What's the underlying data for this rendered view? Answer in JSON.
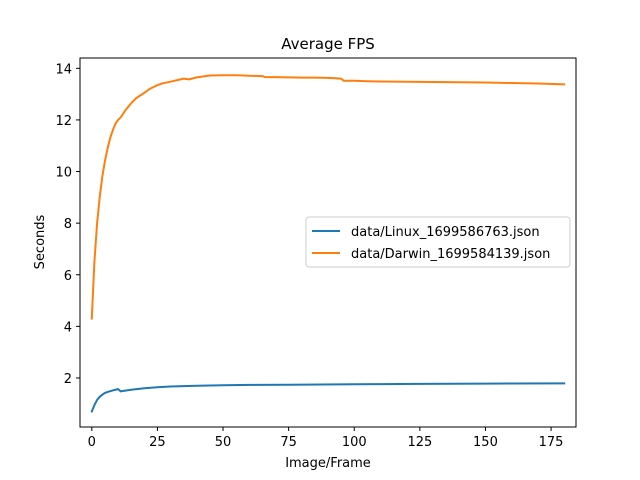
{
  "chart_data": {
    "type": "line",
    "title": "Average FPS",
    "xlabel": "Image/Frame",
    "ylabel": "Seconds",
    "xlim": [
      -4.5,
      184.5
    ],
    "ylim": [
      0.1,
      14.4
    ],
    "xticks": [
      0,
      25,
      50,
      75,
      100,
      125,
      150,
      175
    ],
    "yticks": [
      2,
      4,
      6,
      8,
      10,
      12,
      14
    ],
    "grid": false,
    "legend_position": "center-right",
    "series": [
      {
        "name": "data/Linux_1699586763.json",
        "color": "#1f77b4",
        "points": [
          [
            0,
            0.7
          ],
          [
            1,
            0.95
          ],
          [
            2,
            1.15
          ],
          [
            3,
            1.27
          ],
          [
            4,
            1.35
          ],
          [
            5,
            1.42
          ],
          [
            6,
            1.46
          ],
          [
            8,
            1.52
          ],
          [
            10,
            1.57
          ],
          [
            11,
            1.48
          ],
          [
            12,
            1.5
          ],
          [
            15,
            1.54
          ],
          [
            20,
            1.6
          ],
          [
            25,
            1.64
          ],
          [
            30,
            1.67
          ],
          [
            40,
            1.7
          ],
          [
            50,
            1.72
          ],
          [
            60,
            1.73
          ],
          [
            75,
            1.74
          ],
          [
            100,
            1.76
          ],
          [
            125,
            1.77
          ],
          [
            150,
            1.78
          ],
          [
            180,
            1.79
          ]
        ]
      },
      {
        "name": "data/Darwin_1699584139.json",
        "color": "#ff7f0e",
        "points": [
          [
            0,
            4.3
          ],
          [
            1,
            6.5
          ],
          [
            2,
            8.0
          ],
          [
            3,
            9.0
          ],
          [
            4,
            9.8
          ],
          [
            5,
            10.4
          ],
          [
            6,
            10.9
          ],
          [
            7,
            11.3
          ],
          [
            8,
            11.6
          ],
          [
            9,
            11.85
          ],
          [
            10,
            12.0
          ],
          [
            11,
            12.1
          ],
          [
            13,
            12.4
          ],
          [
            15,
            12.65
          ],
          [
            17,
            12.85
          ],
          [
            20,
            13.05
          ],
          [
            22,
            13.2
          ],
          [
            25,
            13.35
          ],
          [
            27,
            13.42
          ],
          [
            30,
            13.48
          ],
          [
            33,
            13.55
          ],
          [
            35,
            13.6
          ],
          [
            37,
            13.57
          ],
          [
            40,
            13.65
          ],
          [
            45,
            13.72
          ],
          [
            50,
            13.73
          ],
          [
            55,
            13.73
          ],
          [
            58,
            13.72
          ],
          [
            60,
            13.71
          ],
          [
            65,
            13.7
          ],
          [
            66,
            13.66
          ],
          [
            70,
            13.66
          ],
          [
            75,
            13.65
          ],
          [
            80,
            13.64
          ],
          [
            85,
            13.64
          ],
          [
            90,
            13.63
          ],
          [
            95,
            13.6
          ],
          [
            96,
            13.52
          ],
          [
            100,
            13.52
          ],
          [
            105,
            13.5
          ],
          [
            110,
            13.49
          ],
          [
            120,
            13.48
          ],
          [
            130,
            13.47
          ],
          [
            140,
            13.46
          ],
          [
            150,
            13.45
          ],
          [
            160,
            13.43
          ],
          [
            170,
            13.41
          ],
          [
            180,
            13.38
          ]
        ]
      }
    ]
  }
}
